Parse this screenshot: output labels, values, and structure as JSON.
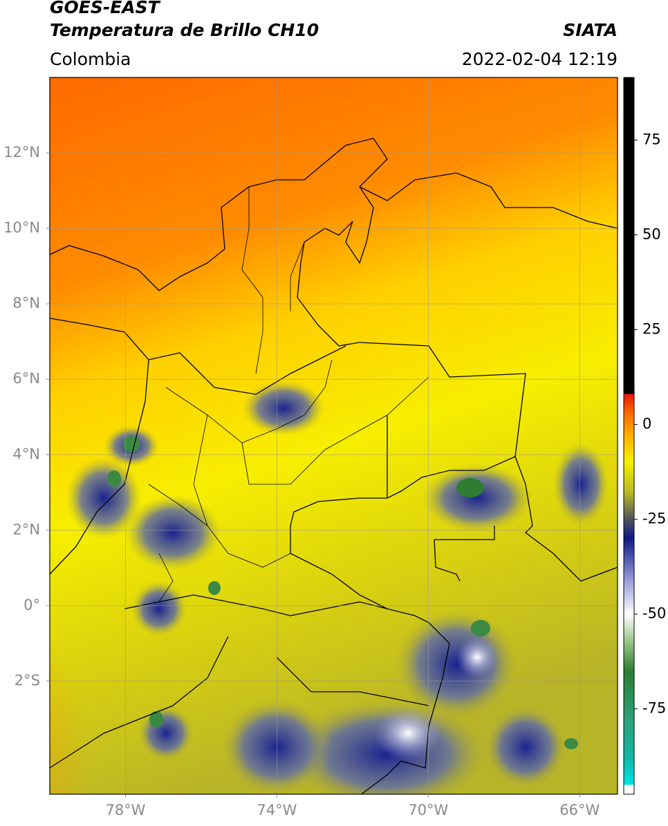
{
  "header": {
    "title": "GOES-EAST",
    "subtitle": "Temperatura de Brillo CH10",
    "source": "SIATA",
    "region": "Colombia",
    "datetime": "2022-02-04 12:19"
  },
  "map": {
    "xlim": [
      -80,
      -65
    ],
    "ylim": [
      -5,
      14
    ],
    "xticks": [
      {
        "value": -78,
        "label": "78°W"
      },
      {
        "value": -74,
        "label": "74°W"
      },
      {
        "value": -70,
        "label": "70°W"
      },
      {
        "value": -66,
        "label": "66°W"
      }
    ],
    "yticks": [
      {
        "value": 12,
        "label": "12°N"
      },
      {
        "value": 10,
        "label": "10°N"
      },
      {
        "value": 8,
        "label": "8°N"
      },
      {
        "value": 6,
        "label": "6°N"
      },
      {
        "value": 4,
        "label": "4°N"
      },
      {
        "value": 2,
        "label": "2°N"
      },
      {
        "value": 0,
        "label": "0°"
      },
      {
        "value": -2,
        "label": "2°S"
      }
    ],
    "grid": true
  },
  "colorbar": {
    "lim": [
      -97.5,
      91.5
    ],
    "ticks": [
      75,
      50,
      25,
      0,
      -25,
      -50,
      -75
    ],
    "colormap": [
      {
        "value": -97.5,
        "color": "#ffffff"
      },
      {
        "value": -95,
        "color": "#ffffff"
      },
      {
        "value": -95,
        "color": "#00e5e5"
      },
      {
        "value": -88,
        "color": "#12b7a8"
      },
      {
        "value": -78,
        "color": "#2fa07a"
      },
      {
        "value": -65,
        "color": "#2e7d32"
      },
      {
        "value": -58,
        "color": "#8fbf80"
      },
      {
        "value": -50,
        "color": "#ffffff"
      },
      {
        "value": -40,
        "color": "#8a8fd0"
      },
      {
        "value": -30,
        "color": "#0c1a80"
      },
      {
        "value": -24,
        "color": "#5e6058"
      },
      {
        "value": -18,
        "color": "#b8b828"
      },
      {
        "value": -10,
        "color": "#f5f000"
      },
      {
        "value": -3,
        "color": "#ffb000"
      },
      {
        "value": 3,
        "color": "#ff6a00"
      },
      {
        "value": 8,
        "color": "#e81a10"
      },
      {
        "value": 8,
        "color": "#000000"
      },
      {
        "value": 91.5,
        "color": "#000000"
      }
    ]
  }
}
